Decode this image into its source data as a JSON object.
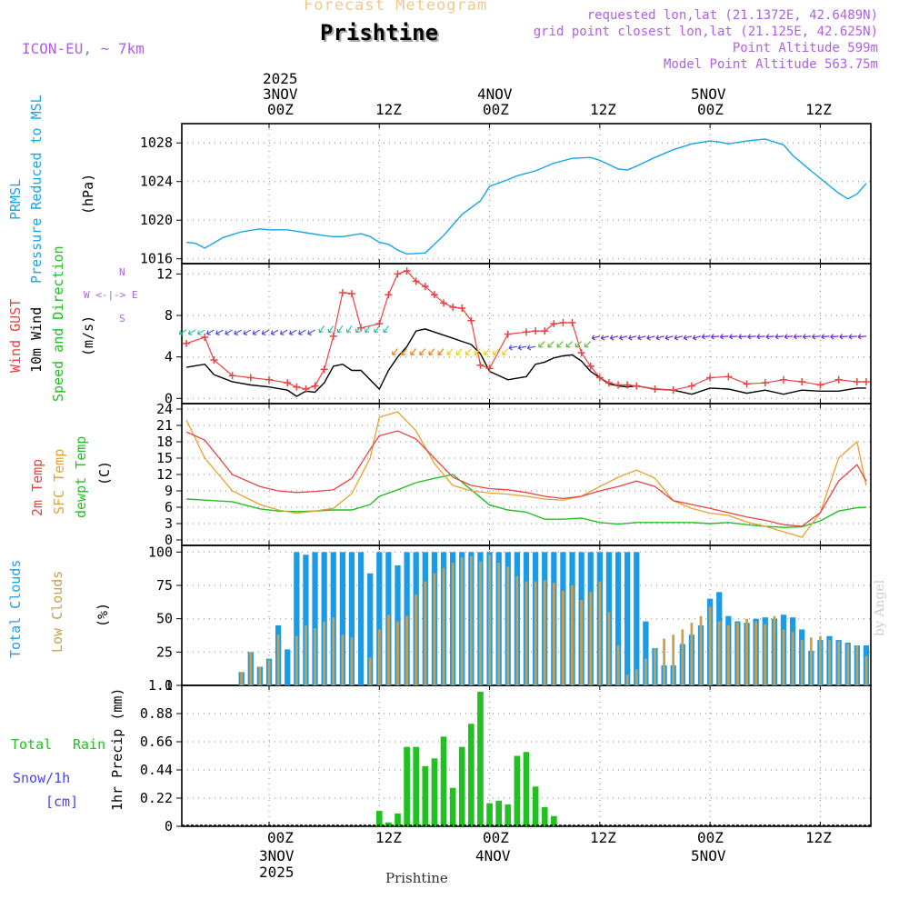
{
  "header": {
    "forecast_title": "Forecast Meteogram",
    "place": "Prishtine",
    "model": "ICON-EU, ~ 7km",
    "requested": "requested lon,lat (21.1372E, 42.6489N)",
    "grid_point": "grid point closest lon,lat (21.125E, 42.625N)",
    "point_alt": "Point Altitude 599m",
    "model_alt": "Model Point Altitude 563.75m",
    "footer_place": "Prishtine",
    "watermark": "by Angel"
  },
  "time_axis": {
    "top_ticks": [
      "00Z",
      "12Z",
      "00Z",
      "12Z",
      "00Z",
      "12Z"
    ],
    "bottom_ticks": [
      "00Z",
      "12Z",
      "00Z",
      "12Z",
      "00Z",
      "12Z"
    ],
    "dates": [
      {
        "line1": "2025",
        "line2": "3NOV",
        "year_bottom": "2025"
      },
      {
        "line1": "",
        "line2": "4NOV",
        "year_bottom": ""
      },
      {
        "line1": "",
        "line2": "5NOV",
        "year_bottom": ""
      }
    ]
  },
  "panel_labels": {
    "pressure": {
      "l1": "PRMSL",
      "l2": "Pressure Reduced to MSL",
      "unit": "(hPa)"
    },
    "wind": {
      "l1": "Wind GUST",
      "l2": "10m Wind",
      "l3": "Speed and Direction",
      "unit": "(m/s)",
      "compass": "W <-|-> E",
      "compass_n": "N",
      "compass_s": "S"
    },
    "temp": {
      "l1": "2m Temp",
      "l2": "SFC Temp",
      "l3": "dewpt Temp",
      "unit": "(C)"
    },
    "clouds": {
      "l1": "Total Clouds",
      "l2": "Low Clouds",
      "unit": "(%)"
    },
    "precip": {
      "l1": "Total",
      "l1b": "Rain",
      "l2": "Snow/1h",
      "l3": "[cm]",
      "unit": "1hr Precip (mm)"
    }
  },
  "colors": {
    "pressure": "#1aa3e8",
    "gust": "#e84343",
    "wind": "#000000",
    "t2m": "#e84343",
    "sfc": "#e8a030",
    "dew": "#22c022",
    "total_cloud": "#1a9be8",
    "low_cloud": "#c8a050",
    "rain": "#22c022",
    "snow": "#4444ee",
    "label_purple": "#a050d0",
    "label_orange": "#e8b060"
  },
  "chart_data": [
    {
      "type": "line",
      "title": "PRMSL Pressure Reduced to MSL",
      "ylabel": "(hPa)",
      "ylim": [
        1015.5,
        1030
      ],
      "yticks": [
        1016,
        1020,
        1024,
        1028
      ],
      "x_hours_from_3nov00z": [
        -9,
        -8,
        -7,
        -5,
        -3,
        -1,
        0,
        2,
        4,
        6,
        7,
        8,
        10,
        11,
        12,
        13,
        14,
        15,
        17,
        19,
        21,
        23,
        24,
        26,
        27,
        29,
        31,
        33,
        35,
        36,
        38,
        39,
        40,
        42,
        44,
        46,
        48,
        49,
        50,
        52,
        54,
        56,
        57,
        59,
        62,
        63,
        64,
        65
      ],
      "series": [
        {
          "name": "PRMSL",
          "values": [
            1017.7,
            1017.6,
            1017.1,
            1018.2,
            1018.8,
            1019.1,
            1019.0,
            1019.0,
            1018.7,
            1018.4,
            1018.3,
            1018.3,
            1018.6,
            1018.3,
            1017.7,
            1017.5,
            1016.9,
            1016.5,
            1016.6,
            1018.4,
            1020.6,
            1022.0,
            1023.5,
            1024.2,
            1024.6,
            1025.1,
            1025.9,
            1026.4,
            1026.5,
            1026.2,
            1025.3,
            1025.2,
            1025.6,
            1026.5,
            1027.3,
            1027.9,
            1028.2,
            1028.1,
            1027.9,
            1028.2,
            1028.4,
            1027.8,
            1026.7,
            1025.1,
            1022.8,
            1022.2,
            1022.7,
            1023.8
          ]
        }
      ]
    },
    {
      "type": "line",
      "title": "Wind GUST / 10m Wind Speed and Direction",
      "ylabel": "(m/s)",
      "ylim": [
        -0.5,
        13
      ],
      "yticks": [
        0,
        4,
        8,
        12
      ],
      "x_hours_from_3nov00z": [
        -9,
        -7,
        -6,
        -4,
        -2,
        0,
        2,
        3,
        4,
        5,
        6,
        7,
        8,
        9,
        10,
        12,
        13,
        14,
        15,
        16,
        17,
        18,
        19,
        20,
        21,
        22,
        23,
        24,
        26,
        28,
        29,
        30,
        31,
        32,
        33,
        34,
        35,
        36,
        37,
        38,
        39,
        40,
        42,
        44,
        46,
        48,
        50,
        52,
        54,
        56,
        58,
        60,
        62,
        64,
        65
      ],
      "series": [
        {
          "name": "Wind GUST",
          "values": [
            5.3,
            5.9,
            3.7,
            2.2,
            2.0,
            1.8,
            1.5,
            1.1,
            0.9,
            1.2,
            2.8,
            6.0,
            10.2,
            10.1,
            6.8,
            7.2,
            10.0,
            12.0,
            12.3,
            11.3,
            10.8,
            10.0,
            9.2,
            8.8,
            8.7,
            7.5,
            3.2,
            2.9,
            6.2,
            6.4,
            6.5,
            6.5,
            7.2,
            7.3,
            7.3,
            4.4,
            3.1,
            2.0,
            1.5,
            1.3,
            1.3,
            1.2,
            0.9,
            0.8,
            1.2,
            2.0,
            2.1,
            1.4,
            1.5,
            1.8,
            1.6,
            1.3,
            1.8,
            1.6,
            1.6
          ]
        },
        {
          "name": "10m Wind",
          "values": [
            3.0,
            3.3,
            2.3,
            1.6,
            1.3,
            1.1,
            0.8,
            0.2,
            0.7,
            0.6,
            1.5,
            3.1,
            3.3,
            2.7,
            2.7,
            0.9,
            2.7,
            4.0,
            5.0,
            6.5,
            6.7,
            6.4,
            6.1,
            5.8,
            5.5,
            5.2,
            4.3,
            2.6,
            1.8,
            2.1,
            3.3,
            3.5,
            3.9,
            4.1,
            4.2,
            3.6,
            2.6,
            2.0,
            1.4,
            1.2,
            1.1,
            1.2,
            0.9,
            0.8,
            0.4,
            1.0,
            0.9,
            0.5,
            0.8,
            0.4,
            0.8,
            0.7,
            0.7,
            1.0,
            1.0
          ]
        }
      ]
    },
    {
      "type": "line",
      "title": "2m Temp / SFC Temp / dewpt Temp",
      "ylabel": "(C)",
      "ylim": [
        -1,
        25
      ],
      "yticks": [
        0,
        3,
        6,
        9,
        12,
        15,
        18,
        21,
        24
      ],
      "x_hours_from_3nov00z": [
        -9,
        -7,
        -4,
        -1,
        1,
        3,
        5,
        7,
        9,
        11,
        12,
        14,
        16,
        18,
        20,
        22,
        24,
        26,
        28,
        30,
        32,
        34,
        36,
        38,
        40,
        42,
        44,
        46,
        48,
        50,
        52,
        54,
        56,
        58,
        60,
        62,
        64,
        65
      ],
      "series": [
        {
          "name": "2m Temp",
          "values": [
            19.8,
            18.3,
            12.0,
            9.8,
            9.0,
            8.7,
            8.9,
            9.2,
            11.3,
            16.6,
            19.1,
            20.0,
            18.5,
            15.0,
            11.5,
            10.0,
            9.4,
            9.2,
            8.7,
            8.0,
            7.6,
            8.0,
            9.0,
            9.8,
            10.8,
            9.8,
            7.2,
            6.5,
            5.8,
            5.0,
            4.2,
            3.6,
            2.8,
            2.5,
            5.0,
            10.8,
            13.8,
            10.8
          ]
        },
        {
          "name": "SFC Temp",
          "values": [
            22.0,
            15.0,
            9.0,
            6.5,
            5.5,
            4.9,
            5.3,
            5.8,
            8.5,
            15.0,
            22.5,
            23.5,
            20.0,
            14.0,
            10.0,
            9.0,
            8.6,
            8.4,
            8.0,
            7.5,
            7.3,
            8.0,
            9.8,
            11.5,
            12.8,
            11.3,
            7.2,
            5.8,
            4.9,
            4.5,
            3.3,
            2.5,
            1.5,
            0.5,
            5.0,
            15.0,
            18.0,
            10.0
          ]
        },
        {
          "name": "dewpt Temp",
          "values": [
            7.5,
            7.3,
            7.0,
            5.7,
            5.3,
            5.2,
            5.3,
            5.5,
            5.5,
            6.5,
            8.0,
            9.2,
            10.5,
            11.3,
            12.0,
            9.2,
            6.4,
            5.5,
            5.1,
            3.8,
            3.8,
            4.0,
            3.2,
            2.9,
            3.2,
            3.2,
            3.2,
            3.2,
            3.0,
            3.2,
            2.8,
            2.5,
            2.3,
            2.4,
            3.5,
            5.3,
            5.9,
            6.0
          ]
        }
      ]
    },
    {
      "type": "bar",
      "title": "Total Clouds / Low Clouds",
      "ylabel": "(%)",
      "ylim": [
        0,
        105
      ],
      "yticks": [
        0,
        25,
        50,
        75,
        100
      ],
      "x_hours_from_3nov00z": [
        -9,
        -8,
        -7,
        -6,
        -5,
        -4,
        -3,
        -2,
        -1,
        0,
        1,
        2,
        3,
        4,
        5,
        6,
        7,
        8,
        9,
        10,
        11,
        12,
        13,
        14,
        15,
        16,
        17,
        18,
        19,
        20,
        21,
        22,
        23,
        24,
        25,
        26,
        27,
        28,
        29,
        30,
        31,
        32,
        33,
        34,
        35,
        36,
        37,
        38,
        39,
        40,
        41,
        42,
        43,
        44,
        45,
        46,
        47,
        48,
        49,
        50,
        51,
        52,
        53,
        54,
        55,
        56,
        57,
        58,
        59,
        60,
        61,
        62,
        63,
        64,
        65
      ],
      "series": [
        {
          "name": "Total Clouds",
          "values": [
            0,
            0,
            0,
            0,
            0,
            0,
            10,
            25,
            14,
            20,
            45,
            27,
            100,
            98,
            100,
            100,
            100,
            100,
            100,
            100,
            84,
            100,
            100,
            90,
            100,
            100,
            100,
            100,
            100,
            100,
            100,
            100,
            100,
            100,
            100,
            100,
            100,
            100,
            100,
            100,
            100,
            100,
            100,
            100,
            100,
            100,
            100,
            100,
            100,
            100,
            48,
            28,
            15,
            15,
            31,
            38,
            45,
            65,
            70,
            52,
            48,
            47,
            50,
            51,
            50,
            53,
            51,
            42,
            26,
            34,
            37,
            34,
            32,
            30,
            30
          ]
        },
        {
          "name": "Low Clouds",
          "values": [
            0,
            0,
            0,
            0,
            0,
            0,
            10,
            25,
            14,
            19,
            38,
            0,
            37,
            45,
            43,
            48,
            51,
            38,
            36,
            0,
            21,
            42,
            53,
            48,
            52,
            68,
            78,
            84,
            88,
            92,
            96,
            97,
            93,
            98,
            92,
            89,
            82,
            78,
            78,
            79,
            77,
            71,
            75,
            64,
            70,
            78,
            55,
            30,
            8,
            12,
            20,
            28,
            35,
            38,
            42,
            47,
            52,
            59,
            48,
            45,
            47,
            50,
            48,
            46,
            52,
            42,
            40,
            34,
            36,
            37,
            34,
            33,
            31,
            30,
            22
          ]
        }
      ]
    },
    {
      "type": "bar",
      "title": "Total Rain / Snow 1hr Precip",
      "ylabel": "1hr Precip (mm)",
      "ylim": [
        0,
        1.1
      ],
      "yticks": [
        0,
        0.22,
        0.44,
        0.66,
        0.88,
        1.1
      ],
      "x_hours_from_3nov00z": [
        12,
        13,
        14,
        15,
        16,
        17,
        18,
        19,
        20,
        21,
        22,
        23,
        24,
        25,
        26,
        27,
        28,
        29,
        30,
        31,
        32,
        33
      ],
      "series": [
        {
          "name": "Total Rain",
          "values": [
            0.12,
            0.03,
            0.1,
            0.62,
            0.62,
            0.47,
            0.53,
            0.7,
            0.3,
            0.62,
            0.8,
            1.05,
            0.18,
            0.2,
            0.17,
            0.55,
            0.58,
            0.31,
            0.15,
            0.08,
            0.0,
            0.0
          ]
        },
        {
          "name": "Snow",
          "values": [
            0,
            0,
            0,
            0,
            0,
            0,
            0,
            0,
            0,
            0,
            0,
            0,
            0,
            0,
            0,
            0,
            0,
            0,
            0,
            0,
            0,
            0
          ]
        }
      ]
    }
  ]
}
